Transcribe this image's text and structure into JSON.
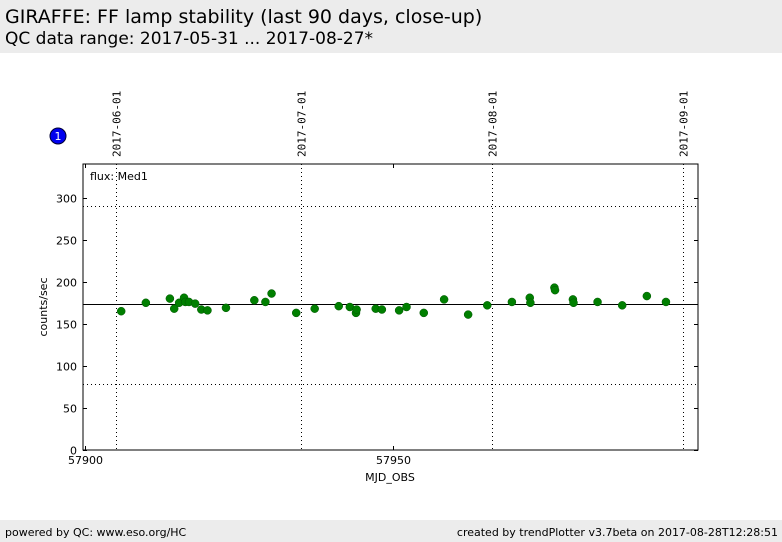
{
  "header": {
    "title": "GIRAFFE: FF lamp stability (last 90 days, close-up)",
    "subtitle": "QC data range: 2017-05-31 ... 2017-08-27*"
  },
  "footer": {
    "left": "powered by QC: www.eso.org/HC",
    "right": "created by trendPlotter v3.7beta on 2017-08-28T12:28:51"
  },
  "badge": "1",
  "chart_data": {
    "type": "scatter",
    "xlabel": "MJD_OBS",
    "ylabel": "counts/sec",
    "annotation": "flux: Med1",
    "xlim": [
      57899.7,
      57999.5
    ],
    "ylim": [
      0,
      340
    ],
    "xticks": [
      57900,
      57950
    ],
    "yticks": [
      0,
      50,
      100,
      150,
      200,
      250,
      300
    ],
    "date_markers": [
      {
        "label": "2017-06-01",
        "mjd": 57905
      },
      {
        "label": "2017-07-01",
        "mjd": 57935
      },
      {
        "label": "2017-08-01",
        "mjd": 57966
      },
      {
        "label": "2017-09-01",
        "mjd": 57997
      }
    ],
    "median_line": 173,
    "threshold_lines": [
      290,
      79
    ],
    "marker_color": "#007f00",
    "series": [
      {
        "x": [
          57905.9,
          57909.9,
          57913.8,
          57914.5,
          57915.3,
          57916.1,
          57916.3,
          57916.9,
          57917.9,
          57918.9,
          57919.9,
          57922.9,
          57927.5,
          57929.3,
          57930.3,
          57934.3,
          57937.3,
          57941.2,
          57943.0,
          57944.0,
          57944.1,
          57947.2,
          57948.2,
          57951.0,
          57952.2,
          57955.0,
          57958.3,
          57962.2,
          57965.3,
          57969.3,
          57972.2,
          57972.3,
          57976.2,
          57976.3,
          57979.2,
          57979.3,
          57983.2,
          57987.2,
          57991.2,
          57994.3
        ],
        "y": [
          165,
          175,
          180,
          168,
          175,
          181,
          176,
          176,
          174,
          167,
          166,
          169,
          178,
          176,
          186,
          163,
          168,
          171,
          170,
          163,
          167,
          168,
          167,
          166,
          170,
          163,
          179,
          161,
          172,
          176,
          181,
          175,
          193,
          190,
          179,
          175,
          176,
          172,
          183,
          176
        ]
      }
    ]
  }
}
